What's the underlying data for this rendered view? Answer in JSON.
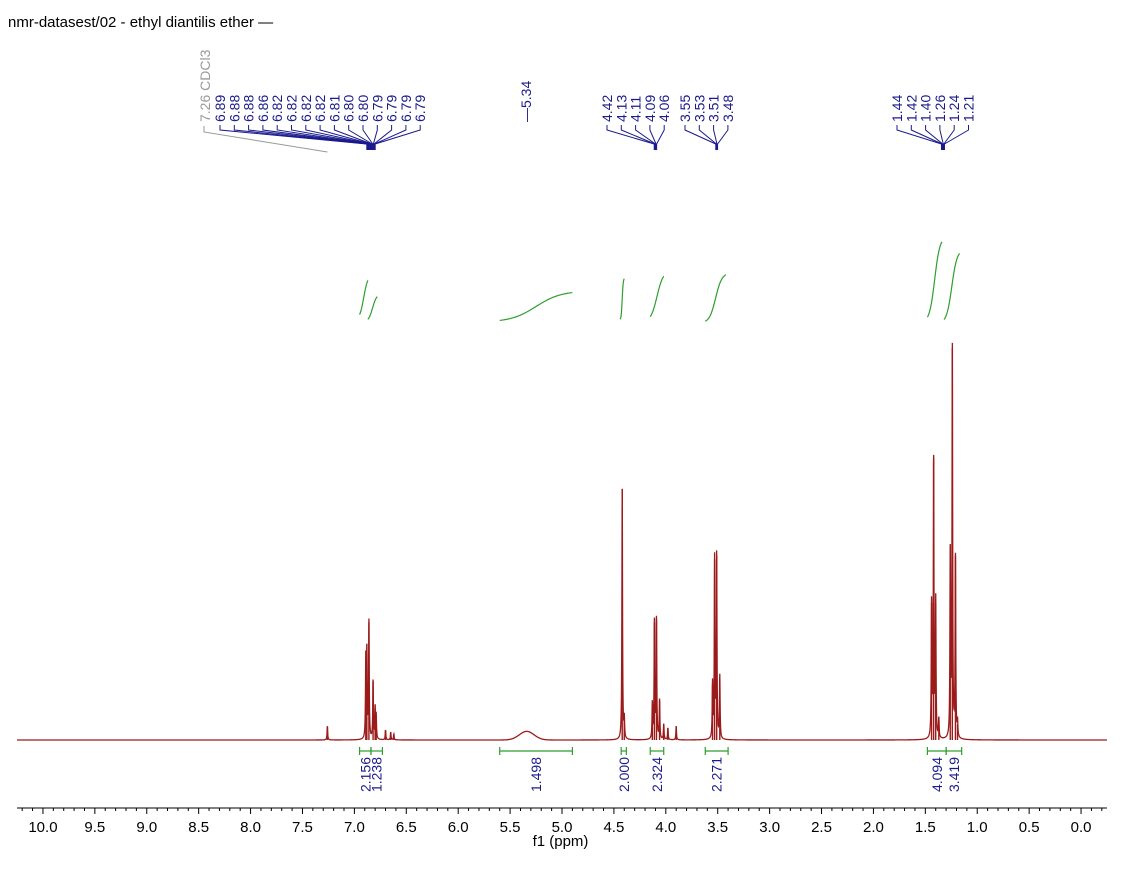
{
  "title": "nmr-datasest/02 - ethyl diantilis ether —",
  "colors": {
    "spectrum": "#9b1b1b",
    "peak_labels": "#1a1a8c",
    "integral": "#2e9e2e",
    "integral_values": "#1a1a8c",
    "solvent_label": "#999999",
    "axis": "#000000"
  },
  "chart_data": {
    "type": "line",
    "title": "nmr-datasest/02 - ethyl diantilis ether —",
    "xlabel": "f1 (ppm)",
    "ylabel": "",
    "xlim": [
      10.25,
      -0.25
    ],
    "x_reversed": true,
    "x_ticks": [
      "10.0",
      "9.5",
      "9.0",
      "8.5",
      "8.0",
      "7.5",
      "7.0",
      "6.5",
      "6.0",
      "5.5",
      "5.0",
      "4.5",
      "4.0",
      "3.5",
      "3.0",
      "2.5",
      "2.0",
      "1.5",
      "1.0",
      "0.5",
      "0.0"
    ],
    "solvent_label": "7.26 CDCl3",
    "peak_label_groups": [
      {
        "anchor": 6.84,
        "labels": [
          "6.89",
          "6.88",
          "6.88",
          "6.86",
          "6.82",
          "6.82",
          "6.82",
          "6.82",
          "6.81",
          "6.80",
          "6.80",
          "6.79",
          "6.79",
          "6.79",
          "6.79"
        ]
      },
      {
        "anchor": 5.34,
        "labels": [
          "5.34"
        ]
      },
      {
        "anchor": 4.1,
        "labels": [
          "4.42",
          "4.13",
          "4.11",
          "4.09",
          "4.06"
        ]
      },
      {
        "anchor": 3.51,
        "labels": [
          "3.55",
          "3.53",
          "3.51",
          "3.48"
        ]
      },
      {
        "anchor": 1.33,
        "labels": [
          "1.44",
          "1.42",
          "1.40",
          "1.26",
          "1.24",
          "1.21"
        ]
      }
    ],
    "integrals": [
      {
        "from": 6.95,
        "to": 6.84,
        "value": "2.156"
      },
      {
        "from": 6.84,
        "to": 6.73,
        "value": "1.238"
      },
      {
        "from": 5.6,
        "to": 4.9,
        "value": "1.498"
      },
      {
        "from": 4.43,
        "to": 4.38,
        "value": "2.000"
      },
      {
        "from": 4.15,
        "to": 4.02,
        "value": "2.324"
      },
      {
        "from": 3.62,
        "to": 3.4,
        "value": "2.271"
      },
      {
        "from": 1.48,
        "to": 1.3,
        "value": "4.094"
      },
      {
        "from": 1.3,
        "to": 1.15,
        "value": "3.419"
      }
    ],
    "peaks": [
      {
        "ppm": 7.26,
        "height": 0.035
      },
      {
        "ppm": 6.89,
        "height": 0.2
      },
      {
        "ppm": 6.88,
        "height": 0.22
      },
      {
        "ppm": 6.86,
        "height": 0.3
      },
      {
        "ppm": 6.82,
        "height": 0.15
      },
      {
        "ppm": 6.8,
        "height": 0.08
      },
      {
        "ppm": 6.79,
        "height": 0.06
      },
      {
        "ppm": 6.7,
        "height": 0.025
      },
      {
        "ppm": 6.65,
        "height": 0.02
      },
      {
        "ppm": 6.62,
        "height": 0.015
      },
      {
        "ppm": 4.42,
        "height": 0.64
      },
      {
        "ppm": 4.4,
        "height": 0.05
      },
      {
        "ppm": 4.13,
        "height": 0.09
      },
      {
        "ppm": 4.11,
        "height": 0.3
      },
      {
        "ppm": 4.09,
        "height": 0.31
      },
      {
        "ppm": 4.06,
        "height": 0.1
      },
      {
        "ppm": 4.02,
        "height": 0.04
      },
      {
        "ppm": 3.98,
        "height": 0.03
      },
      {
        "ppm": 3.9,
        "height": 0.035
      },
      {
        "ppm": 3.55,
        "height": 0.14
      },
      {
        "ppm": 3.53,
        "height": 0.46
      },
      {
        "ppm": 3.51,
        "height": 0.47
      },
      {
        "ppm": 3.48,
        "height": 0.16
      },
      {
        "ppm": 1.44,
        "height": 0.35
      },
      {
        "ppm": 1.42,
        "height": 0.72
      },
      {
        "ppm": 1.4,
        "height": 0.35
      },
      {
        "ppm": 1.37,
        "height": 0.05
      },
      {
        "ppm": 1.26,
        "height": 0.48
      },
      {
        "ppm": 1.24,
        "height": 1.0
      },
      {
        "ppm": 1.21,
        "height": 0.47
      },
      {
        "ppm": 1.19,
        "height": 0.04
      }
    ],
    "broad_peaks": [
      {
        "ppm": 5.34,
        "height": 0.022,
        "width": 0.1
      }
    ]
  }
}
